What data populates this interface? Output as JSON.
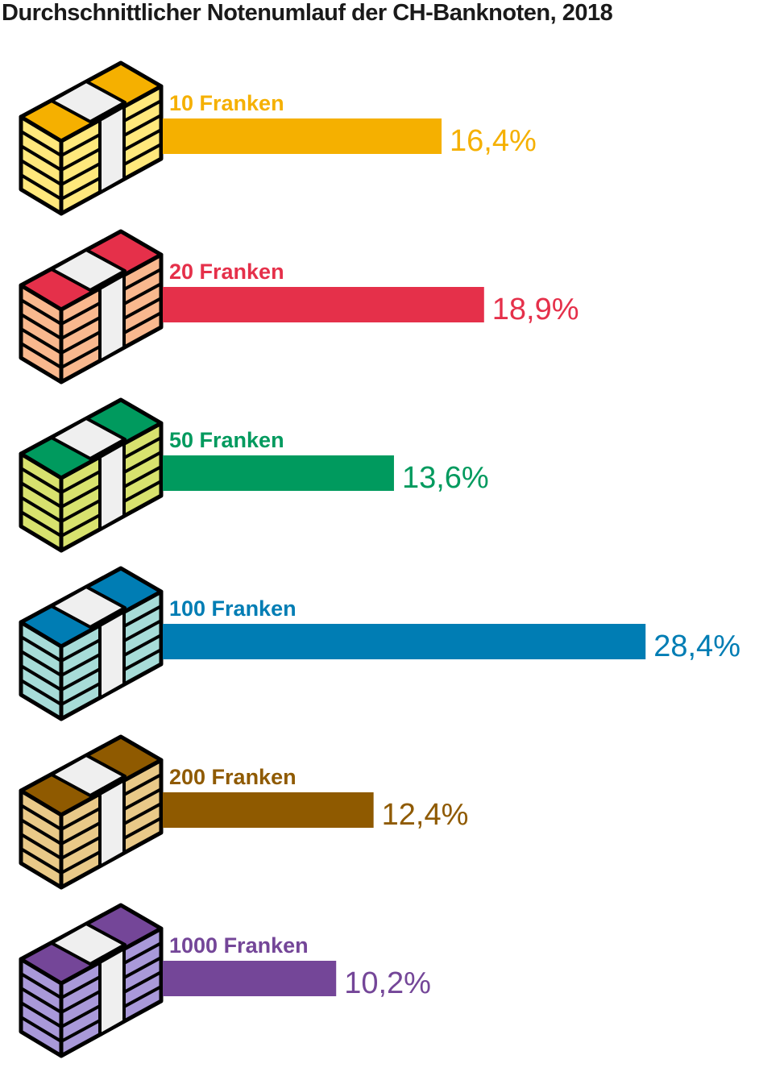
{
  "chart_data": {
    "type": "bar",
    "orientation": "horizontal",
    "title": "Durchschnittlicher Notenumlauf der CH-Banknoten, 2018",
    "categories": [
      "10 Franken",
      "20 Franken",
      "50 Franken",
      "100 Franken",
      "200 Franken",
      "1000 Franken"
    ],
    "values": [
      16.4,
      18.9,
      13.6,
      28.4,
      12.4,
      10.2
    ],
    "value_labels": [
      "16,4%",
      "18,9%",
      "13,6%",
      "28,4%",
      "12,4%",
      "10,2%"
    ],
    "unit": "%",
    "grid": false,
    "legend": "none",
    "colors": [
      "#f5b000",
      "#e5304a",
      "#009a5e",
      "#007db4",
      "#8f5a00",
      "#744698"
    ],
    "stack_top_colors": [
      "#f5b000",
      "#e5304a",
      "#009a5e",
      "#007db4",
      "#8f5a00",
      "#744698"
    ],
    "stack_side_colors": [
      "#ffe87c",
      "#f9b88e",
      "#d8e26e",
      "#a7dcd8",
      "#e9c988",
      "#a999d9"
    ]
  },
  "icons": [
    "banknote-stack-icon"
  ]
}
